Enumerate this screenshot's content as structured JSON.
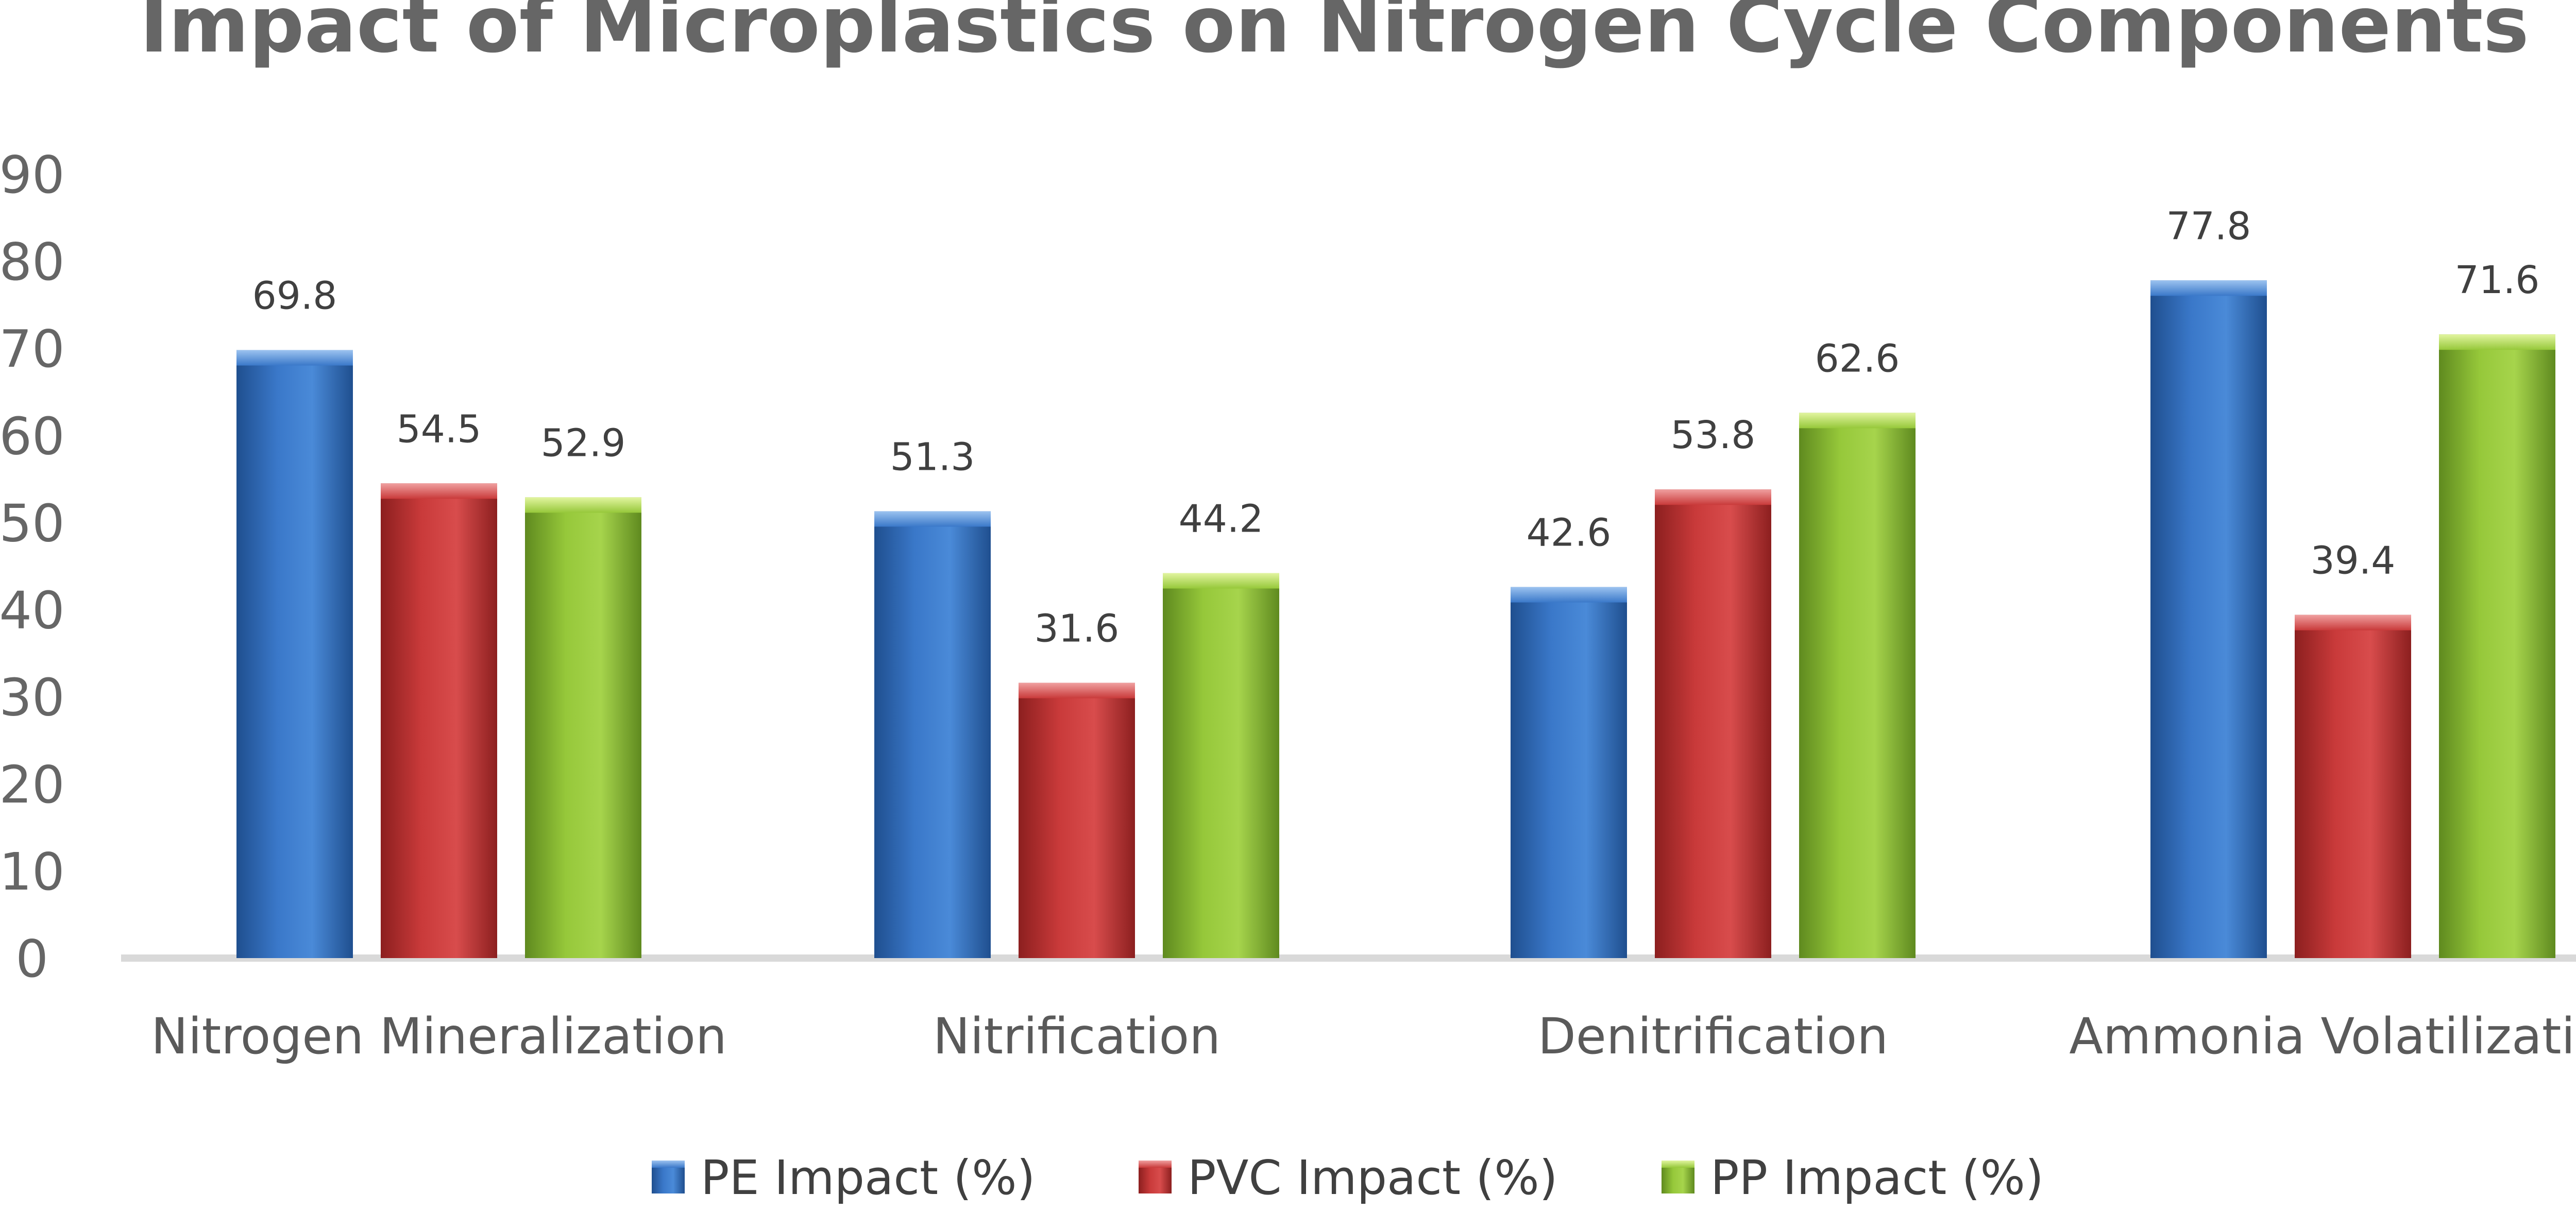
{
  "chart_data": {
    "type": "bar",
    "title": "Impact of Microplastics on Nitrogen Cycle Components",
    "xlabel": "",
    "ylabel": "",
    "ylim": [
      0,
      90
    ],
    "yticks": [
      "0",
      "10",
      "20",
      "30",
      "40",
      "50",
      "60",
      "70",
      "80",
      "90"
    ],
    "categories": [
      "Nitrogen Mineralization",
      "Nitrification",
      "Denitrification",
      "Ammonia Volatilization"
    ],
    "series": [
      {
        "name": "PE Impact (%)",
        "color": "#3a78c9",
        "values": [
          69.8,
          51.3,
          42.6,
          77.8
        ]
      },
      {
        "name": "PVC Impact (%)",
        "color": "#c93a3a",
        "values": [
          54.5,
          31.6,
          53.8,
          39.4
        ]
      },
      {
        "name": "PP Impact (%)",
        "color": "#96c83a",
        "values": [
          52.9,
          44.2,
          62.6,
          71.6
        ]
      }
    ],
    "data_labels": true,
    "legend_position": "bottom",
    "grid": false
  }
}
